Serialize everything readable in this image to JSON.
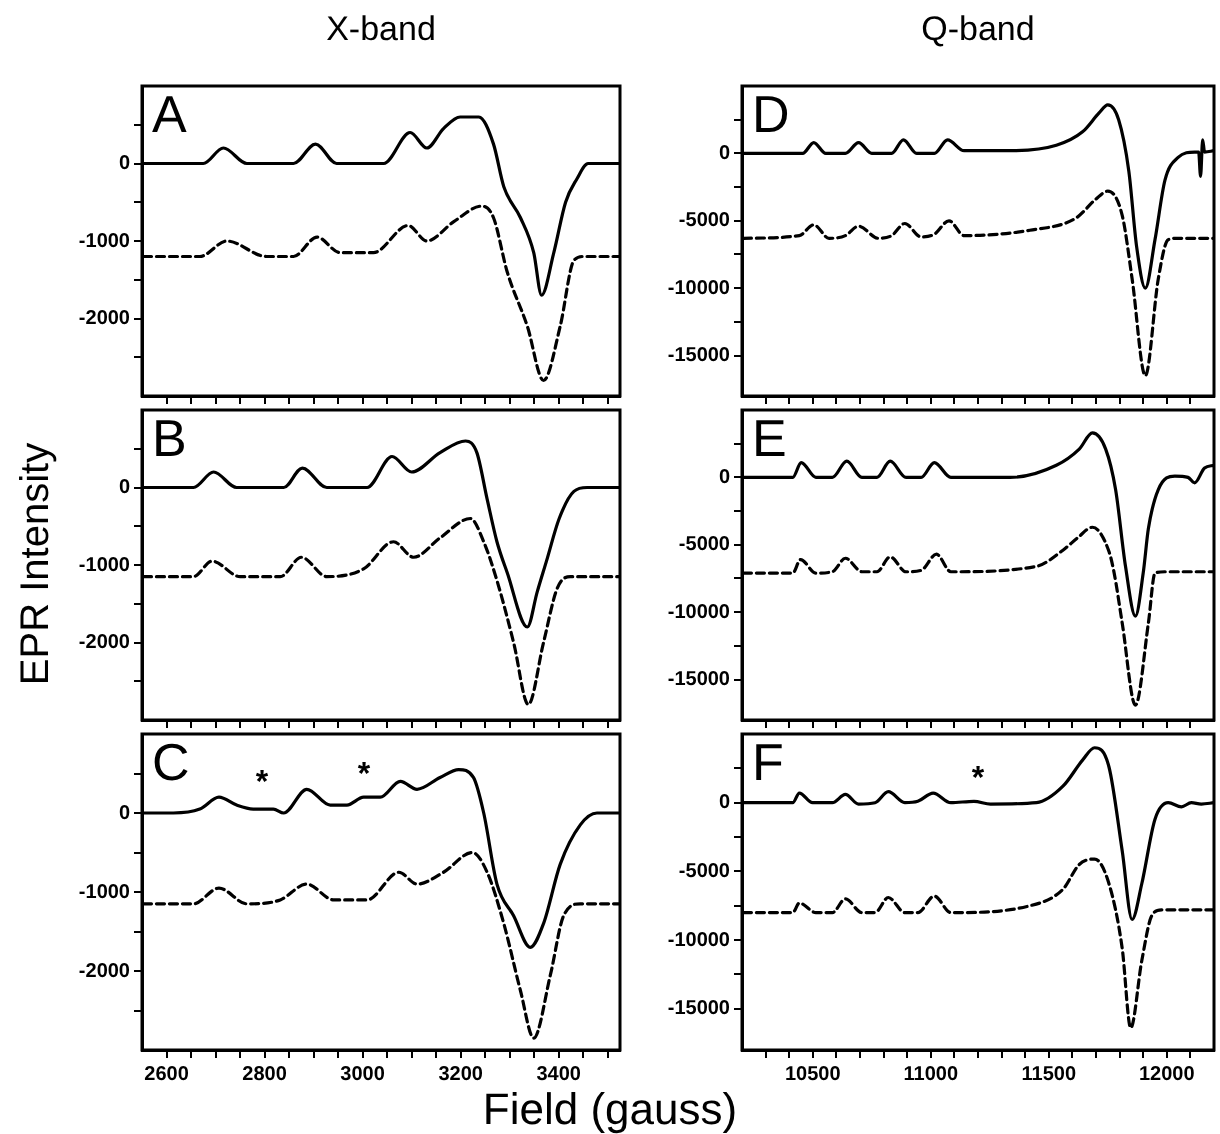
{
  "chart_data": [
    {
      "type": "line",
      "title": "X-band",
      "annotations": [
        "A"
      ],
      "xlim": [
        2550,
        3525
      ],
      "ylim": [
        -3000,
        1000
      ],
      "xticks": [
        2600,
        {
          "value": 2650,
          "label": null
        },
        {
          "value": 2700,
          "label": null
        },
        {
          "value": 2750,
          "label": null
        },
        2800,
        {
          "value": 2850,
          "label": null
        },
        {
          "value": 2900,
          "label": null
        },
        {
          "value": 2950,
          "label": null
        },
        3000,
        {
          "value": 3050,
          "label": null
        },
        {
          "value": 3100,
          "label": null
        },
        {
          "value": 3150,
          "label": null
        },
        3200,
        {
          "value": 3250,
          "label": null
        },
        {
          "value": 3300,
          "label": null
        },
        {
          "value": 3350,
          "label": null
        },
        3400,
        {
          "value": 3450,
          "label": null
        },
        {
          "value": 3500,
          "label": null
        }
      ],
      "yticks": [
        {
          "value": -2500,
          "label": null
        },
        -2000,
        {
          "value": -1500,
          "label": null
        },
        -1000,
        {
          "value": -500,
          "label": null
        },
        0,
        {
          "value": 500,
          "label": null
        }
      ],
      "tick_labels": "y",
      "marker": "none",
      "series": [
        {
          "color": "#000000",
          "line_style": "solid",
          "x": [
            2553,
            2675,
            2716,
            2764,
            2859,
            2904,
            2947,
            3043,
            3097,
            3131,
            3165,
            3199,
            3237,
            3267,
            3288,
            3322,
            3349,
            3365,
            3390,
            3414,
            3437,
            3460,
            3525
          ],
          "values": [
            0,
            0,
            200,
            0,
            0,
            250,
            0,
            0,
            400,
            200,
            450,
            600,
            600,
            250,
            -300,
            -700,
            -1150,
            -1700,
            -1150,
            -500,
            -200,
            0,
            0
          ]
        },
        {
          "color": "#000000",
          "line_style": "dashed",
          "x": [
            2553,
            2668,
            2723,
            2804,
            2859,
            2907,
            2954,
            3022,
            3093,
            3131,
            3186,
            3243,
            3267,
            3295,
            3336,
            3369,
            3403,
            3431,
            3451,
            3525
          ],
          "values": [
            -1200,
            -1200,
            -1000,
            -1200,
            -1200,
            -950,
            -1150,
            -1150,
            -800,
            -1000,
            -750,
            -550,
            -700,
            -1400,
            -2100,
            -2800,
            -2100,
            -1250,
            -1200,
            -1200
          ]
        }
      ]
    },
    {
      "type": "line",
      "ylabel": "EPR Intensity",
      "annotations": [
        "B"
      ],
      "xlim": [
        2550,
        3525
      ],
      "ylim": [
        -3000,
        1000
      ],
      "xticks": [
        2600,
        {
          "value": 2650,
          "label": null
        },
        {
          "value": 2700,
          "label": null
        },
        {
          "value": 2750,
          "label": null
        },
        2800,
        {
          "value": 2850,
          "label": null
        },
        {
          "value": 2900,
          "label": null
        },
        {
          "value": 2950,
          "label": null
        },
        3000,
        {
          "value": 3050,
          "label": null
        },
        {
          "value": 3100,
          "label": null
        },
        {
          "value": 3150,
          "label": null
        },
        3200,
        {
          "value": 3250,
          "label": null
        },
        {
          "value": 3300,
          "label": null
        },
        {
          "value": 3350,
          "label": null
        },
        3400,
        {
          "value": 3450,
          "label": null
        },
        {
          "value": 3500,
          "label": null
        }
      ],
      "yticks": [
        {
          "value": -2500,
          "label": null
        },
        -2000,
        {
          "value": -1500,
          "label": null
        },
        -1000,
        {
          "value": -500,
          "label": null
        },
        0,
        {
          "value": 500,
          "label": null
        }
      ],
      "tick_labels": "y",
      "marker": "none",
      "series": [
        {
          "color": "#000000",
          "line_style": "solid",
          "x": [
            2553,
            2655,
            2696,
            2743,
            2839,
            2877,
            2927,
            3009,
            3060,
            3100,
            3158,
            3210,
            3233,
            3254,
            3274,
            3295,
            3336,
            3356,
            3375,
            3401,
            3431,
            3458,
            3525
          ],
          "values": [
            0,
            0,
            200,
            0,
            0,
            250,
            0,
            0,
            400,
            200,
            450,
            600,
            450,
            -150,
            -700,
            -1100,
            -1800,
            -1350,
            -950,
            -400,
            -50,
            0,
            0
          ]
        },
        {
          "color": "#000000",
          "line_style": "dashed",
          "x": [
            2553,
            2655,
            2693,
            2750,
            2832,
            2875,
            2927,
            3002,
            3063,
            3104,
            3158,
            3220,
            3247,
            3274,
            3308,
            3338,
            3369,
            3397,
            3424,
            3525
          ],
          "values": [
            -1150,
            -1150,
            -950,
            -1150,
            -1150,
            -900,
            -1150,
            -1050,
            -700,
            -900,
            -650,
            -400,
            -700,
            -1200,
            -2000,
            -2800,
            -2000,
            -1300,
            -1150,
            -1150
          ]
        }
      ]
    },
    {
      "type": "line",
      "xlabel": "Field (gauss)",
      "annotations": [
        "C",
        "*",
        "*"
      ],
      "xlim": [
        2550,
        3525
      ],
      "ylim": [
        -3000,
        1000
      ],
      "xticks": [
        2600,
        {
          "value": 2650,
          "label": null
        },
        {
          "value": 2700,
          "label": null
        },
        {
          "value": 2750,
          "label": null
        },
        2800,
        {
          "value": 2850,
          "label": null
        },
        {
          "value": 2900,
          "label": null
        },
        {
          "value": 2950,
          "label": null
        },
        3000,
        {
          "value": 3050,
          "label": null
        },
        {
          "value": 3100,
          "label": null
        },
        {
          "value": 3150,
          "label": null
        },
        3200,
        {
          "value": 3250,
          "label": null
        },
        {
          "value": 3300,
          "label": null
        },
        {
          "value": 3350,
          "label": null
        },
        3400,
        {
          "value": 3450,
          "label": null
        },
        {
          "value": 3500,
          "label": null
        }
      ],
      "yticks": [
        {
          "value": -2500,
          "label": null
        },
        -2000,
        {
          "value": -1500,
          "label": null
        },
        -1000,
        {
          "value": -500,
          "label": null
        },
        0,
        {
          "value": 500,
          "label": null
        }
      ],
      "marker": "none",
      "series": [
        {
          "color": "#000000",
          "line_style": "solid",
          "x": [
            2553,
            2614,
            2668,
            2707,
            2743,
            2777,
            2818,
            2839,
            2886,
            2934,
            2968,
            3002,
            3036,
            3077,
            3111,
            3158,
            3196,
            3226,
            3247,
            3274,
            3308,
            3342,
            3369,
            3403,
            3444,
            3478,
            3525
          ],
          "values": [
            0,
            0,
            50,
            200,
            100,
            50,
            50,
            0,
            300,
            100,
            100,
            200,
            200,
            400,
            300,
            450,
            550,
            450,
            0,
            -900,
            -1300,
            -1700,
            -1400,
            -650,
            -150,
            0,
            0
          ]
        },
        {
          "color": "#000000",
          "line_style": "dashed",
          "x": [
            2553,
            2655,
            2707,
            2764,
            2832,
            2886,
            2941,
            3009,
            3074,
            3111,
            3165,
            3224,
            3254,
            3288,
            3322,
            3349,
            3383,
            3410,
            3444,
            3525
          ],
          "values": [
            -1150,
            -1150,
            -950,
            -1150,
            -1100,
            -900,
            -1100,
            -1100,
            -750,
            -900,
            -750,
            -500,
            -750,
            -1400,
            -2250,
            -2850,
            -2050,
            -1300,
            -1150,
            -1150
          ]
        }
      ]
    },
    {
      "type": "line",
      "title": "Q-band",
      "annotations": [
        "D"
      ],
      "xlim": [
        10200,
        12200
      ],
      "ylim": [
        -18000,
        5000
      ],
      "xticks": [
        {
          "value": 10300,
          "label": null
        },
        {
          "value": 10400,
          "label": null
        },
        10500,
        {
          "value": 10600,
          "label": null
        },
        {
          "value": 10700,
          "label": null
        },
        {
          "value": 10800,
          "label": null
        },
        {
          "value": 10900,
          "label": null
        },
        11000,
        {
          "value": 11100,
          "label": null
        },
        {
          "value": 11200,
          "label": null
        },
        {
          "value": 11300,
          "label": null
        },
        {
          "value": 11400,
          "label": null
        },
        11500,
        {
          "value": 11600,
          "label": null
        },
        {
          "value": 11700,
          "label": null
        },
        {
          "value": 11800,
          "label": null
        },
        {
          "value": 11900,
          "label": null
        },
        12000,
        {
          "value": 12100,
          "label": null
        }
      ],
      "yticks": [
        -15000,
        {
          "value": -12500,
          "label": null
        },
        -10000,
        {
          "value": -7500,
          "label": null
        },
        -5000,
        {
          "value": -2500,
          "label": null
        },
        0,
        {
          "value": 2500,
          "label": null
        }
      ],
      "tick_labels": "y",
      "marker": "none",
      "series": [
        {
          "color": "#000000",
          "line_style": "solid",
          "x": [
            10206,
            10457,
            10504,
            10555,
            10638,
            10694,
            10750,
            10834,
            10884,
            10940,
            11015,
            11071,
            11141,
            11336,
            11532,
            11643,
            11713,
            11750,
            11796,
            11839,
            11872,
            11909,
            11950,
            11992,
            12048,
            12118,
            12135,
            12143,
            12152,
            12160,
            12200
          ],
          "values": [
            0,
            0,
            800,
            0,
            0,
            800,
            0,
            0,
            1000,
            0,
            0,
            1000,
            200,
            200,
            600,
            1600,
            3000,
            3600,
            2500,
            -1300,
            -6900,
            -10000,
            -6400,
            -2000,
            -300,
            100,
            100,
            -1700,
            1000,
            100,
            200
          ]
        },
        {
          "color": "#000000",
          "line_style": "dashed",
          "x": [
            10206,
            10443,
            10504,
            10569,
            10638,
            10694,
            10778,
            10834,
            10890,
            10959,
            11015,
            11077,
            11141,
            11420,
            11615,
            11699,
            11750,
            11811,
            11853,
            11909,
            11964,
            12006,
            12048,
            12200
          ],
          "values": [
            -6300,
            -6100,
            -5300,
            -6300,
            -6100,
            -5400,
            -6300,
            -6100,
            -5200,
            -6200,
            -6000,
            -5000,
            -6100,
            -5700,
            -4800,
            -3400,
            -2800,
            -4600,
            -9300,
            -16500,
            -9300,
            -6400,
            -6300,
            -6300
          ]
        }
      ]
    },
    {
      "type": "line",
      "annotations": [
        "E"
      ],
      "xlim": [
        10200,
        12200
      ],
      "ylim": [
        -18000,
        5000
      ],
      "xticks": [
        {
          "value": 10300,
          "label": null
        },
        {
          "value": 10400,
          "label": null
        },
        10500,
        {
          "value": 10600,
          "label": null
        },
        {
          "value": 10700,
          "label": null
        },
        {
          "value": 10800,
          "label": null
        },
        {
          "value": 10900,
          "label": null
        },
        11000,
        {
          "value": 11100,
          "label": null
        },
        {
          "value": 11200,
          "label": null
        },
        {
          "value": 11300,
          "label": null
        },
        {
          "value": 11400,
          "label": null
        },
        11500,
        {
          "value": 11600,
          "label": null
        },
        {
          "value": 11700,
          "label": null
        },
        {
          "value": 11800,
          "label": null
        },
        {
          "value": 11900,
          "label": null
        },
        12000,
        {
          "value": 12100,
          "label": null
        }
      ],
      "yticks": [
        -15000,
        {
          "value": -12500,
          "label": null
        },
        -10000,
        {
          "value": -7500,
          "label": null
        },
        -5000,
        {
          "value": -2500,
          "label": null
        },
        0,
        {
          "value": 2500,
          "label": null
        }
      ],
      "tick_labels": "y",
      "marker": "none",
      "series": [
        {
          "color": "#000000",
          "line_style": "solid",
          "x": [
            10206,
            10415,
            10451,
            10513,
            10583,
            10644,
            10708,
            10772,
            10828,
            10895,
            10959,
            11015,
            11085,
            11336,
            11532,
            11629,
            11685,
            11741,
            11783,
            11825,
            11867,
            11900,
            11922,
            11964,
            12034,
            12090,
            12118,
            12160,
            12200
          ],
          "values": [
            0,
            0,
            1100,
            0,
            0,
            1200,
            0,
            0,
            1200,
            0,
            0,
            1100,
            0,
            0,
            900,
            2100,
            3300,
            2100,
            -900,
            -6600,
            -10300,
            -7100,
            -3800,
            -900,
            100,
            0,
            -400,
            700,
            900
          ]
        },
        {
          "color": "#000000",
          "line_style": "dashed",
          "x": [
            10206,
            10415,
            10448,
            10513,
            10583,
            10638,
            10708,
            10772,
            10828,
            10895,
            10959,
            11024,
            11085,
            11448,
            11560,
            11621,
            11685,
            11755,
            11777,
            11811,
            11867,
            11922,
            11950,
            11992,
            12200
          ],
          "values": [
            -7100,
            -7100,
            -6100,
            -7100,
            -7000,
            -6000,
            -7000,
            -7000,
            -5900,
            -7000,
            -6900,
            -5700,
            -7000,
            -6600,
            -5400,
            -4500,
            -3700,
            -5500,
            -7100,
            -10800,
            -16900,
            -10800,
            -7100,
            -7000,
            -7000
          ]
        }
      ]
    },
    {
      "type": "line",
      "annotations": [
        "F",
        "*"
      ],
      "xlim": [
        10200,
        12200
      ],
      "ylim": [
        -18000,
        5000
      ],
      "xticks": [
        {
          "value": 10300,
          "label": null
        },
        {
          "value": 10400,
          "label": null
        },
        10500,
        {
          "value": 10600,
          "label": null
        },
        {
          "value": 10700,
          "label": null
        },
        {
          "value": 10800,
          "label": null
        },
        {
          "value": 10900,
          "label": null
        },
        11000,
        {
          "value": 11100,
          "label": null
        },
        {
          "value": 11200,
          "label": null
        },
        {
          "value": 11300,
          "label": null
        },
        {
          "value": 11400,
          "label": null
        },
        11500,
        {
          "value": 11600,
          "label": null
        },
        {
          "value": 11700,
          "label": null
        },
        {
          "value": 11800,
          "label": null
        },
        {
          "value": 11900,
          "label": null
        },
        12000,
        {
          "value": 12100,
          "label": null
        }
      ],
      "yticks": [
        -15000,
        {
          "value": -12500,
          "label": null
        },
        -10000,
        {
          "value": -7500,
          "label": null
        },
        -5000,
        {
          "value": -2500,
          "label": null
        },
        0,
        {
          "value": 2500,
          "label": null
        }
      ],
      "marker": "none",
      "series": [
        {
          "color": "#000000",
          "line_style": "solid",
          "x": [
            10206,
            10415,
            10443,
            10499,
            10583,
            10638,
            10694,
            10764,
            10820,
            10890,
            10945,
            11010,
            11085,
            11183,
            11253,
            11448,
            11560,
            11643,
            11694,
            11755,
            11811,
            11853,
            11894,
            11950,
            12006,
            12062,
            12104,
            12146,
            12200
          ],
          "values": [
            0,
            0,
            700,
            0,
            0,
            600,
            -100,
            0,
            800,
            0,
            100,
            700,
            0,
            100,
            -100,
            0,
            1200,
            3100,
            4000,
            2600,
            -3500,
            -8500,
            -5900,
            -1200,
            0,
            -300,
            0,
            -100,
            0
          ]
        },
        {
          "color": "#000000",
          "line_style": "dashed",
          "x": [
            10206,
            10415,
            10443,
            10513,
            10583,
            10638,
            10708,
            10764,
            10820,
            10890,
            10945,
            11015,
            11085,
            11420,
            11560,
            11629,
            11694,
            11755,
            11811,
            11847,
            11894,
            11937,
            11978,
            12200
          ],
          "values": [
            -8000,
            -8000,
            -7300,
            -8000,
            -8000,
            -7000,
            -8000,
            -8000,
            -6900,
            -8000,
            -8000,
            -6800,
            -8000,
            -7500,
            -6300,
            -4500,
            -4100,
            -5900,
            -10600,
            -16400,
            -11500,
            -8200,
            -7800,
            -7800
          ]
        }
      ]
    }
  ]
}
